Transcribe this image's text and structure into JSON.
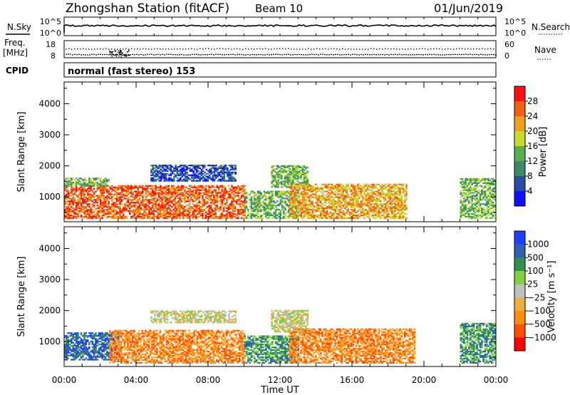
{
  "header": {
    "station": "Zhongshan Station (fitACF)",
    "beam": "Beam 10",
    "date": "01/Jun/2019"
  },
  "summary_panels": {
    "nsky_label": "N.Sky",
    "nsky_ticks": [
      "10^5",
      "10^0"
    ],
    "nsearch_label": "N.Search",
    "nsearch_ticks": [
      "10^5",
      "10^0"
    ],
    "freq_label_1": "Freq.",
    "freq_label_2": "[MHz]",
    "freq_ticks": [
      "18",
      "8"
    ],
    "nave_label": "Nave",
    "nave_ticks": [
      "60",
      "0"
    ],
    "cpid_label": "CPID",
    "cpid_text": "normal (fast stereo) 153"
  },
  "colors": {
    "power": [
      "#1010ff",
      "#2c4aa8",
      "#3d8a6a",
      "#55b050",
      "#c8dc30",
      "#f0a020",
      "#f06010",
      "#ff1010"
    ],
    "velocity": [
      "#ff0000",
      "#ff5000",
      "#ff8c10",
      "#f0b040",
      "#c0c0c0",
      "#80d040",
      "#309050",
      "#3060b0",
      "#2040ff"
    ]
  },
  "chart_data": [
    {
      "type": "heatmap",
      "panel": "power",
      "ylabel": "Slant Range [km]",
      "xlabel": "",
      "yticks": [
        1000,
        2000,
        3000,
        4000
      ],
      "ylim": [
        200,
        4700
      ],
      "x_ticks": [
        "00:00",
        "04:00",
        "08:00",
        "12:00",
        "16:00",
        "20:00",
        "00:00"
      ],
      "xlim_hours": [
        0,
        24
      ],
      "colorbar": {
        "label": "Power [dB]",
        "ticks": [
          "4",
          "8",
          "12",
          "16",
          "20",
          "24",
          "28"
        ],
        "range": [
          0,
          32
        ]
      },
      "regions": [
        {
          "t0": 0.0,
          "t1": 10.0,
          "r0": 300,
          "r1": 1350,
          "level": 6
        },
        {
          "t0": 0.0,
          "t1": 2.5,
          "r0": 1350,
          "r1": 1600,
          "level": 3
        },
        {
          "t0": 4.8,
          "t1": 9.5,
          "r0": 1500,
          "r1": 2000,
          "level": 1
        },
        {
          "t0": 10.0,
          "t1": 13.0,
          "r0": 300,
          "r1": 1200,
          "level": 3
        },
        {
          "t0": 11.5,
          "t1": 13.5,
          "r0": 1300,
          "r1": 2000,
          "level": 3
        },
        {
          "t0": 12.5,
          "t1": 19.0,
          "r0": 300,
          "r1": 1400,
          "level": 5
        },
        {
          "t0": 22.0,
          "t1": 23.9,
          "r0": 300,
          "r1": 1600,
          "level": 3
        }
      ]
    },
    {
      "type": "heatmap",
      "panel": "velocity",
      "ylabel": "Slant Range [km]",
      "xlabel": "Time UT",
      "yticks": [
        1000,
        2000,
        3000,
        4000
      ],
      "ylim": [
        200,
        4700
      ],
      "x_ticks": [
        "00:00",
        "04:00",
        "08:00",
        "12:00",
        "16:00",
        "20:00",
        "00:00"
      ],
      "xlim_hours": [
        0,
        24
      ],
      "colorbar": {
        "label": "Velocity [m s⁻¹]",
        "ticks": [
          "1000",
          "500",
          "100",
          "25",
          "−25",
          "−100",
          "−500",
          "−1000"
        ],
        "range": [
          -1000,
          1000
        ]
      },
      "regions": [
        {
          "t0": 0.0,
          "t1": 3.0,
          "r0": 400,
          "r1": 1300,
          "level": 7
        },
        {
          "t0": 2.5,
          "t1": 10.0,
          "r0": 300,
          "r1": 1350,
          "level": 2
        },
        {
          "t0": 4.8,
          "t1": 9.5,
          "r0": 1600,
          "r1": 2000,
          "level": 4
        },
        {
          "t0": 10.0,
          "t1": 13.0,
          "r0": 300,
          "r1": 1200,
          "level": 6
        },
        {
          "t0": 11.5,
          "t1": 13.5,
          "r0": 1300,
          "r1": 2000,
          "level": 4
        },
        {
          "t0": 12.5,
          "t1": 19.5,
          "r0": 300,
          "r1": 1400,
          "level": 2
        },
        {
          "t0": 22.0,
          "t1": 23.9,
          "r0": 300,
          "r1": 1600,
          "level": 6
        }
      ]
    }
  ]
}
